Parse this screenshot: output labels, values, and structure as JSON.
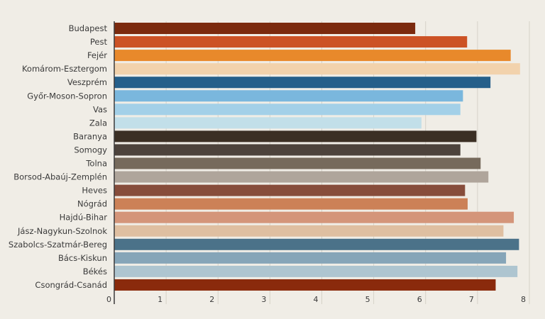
{
  "chart_data": {
    "type": "bar",
    "orientation": "horizontal",
    "title": "",
    "xlabel": "",
    "ylabel": "",
    "xlim": [
      0,
      8
    ],
    "x_ticks": [
      "0",
      "1",
      "2",
      "3",
      "4",
      "5",
      "6",
      "7",
      "8"
    ],
    "grid": true,
    "categories": [
      "Budapest",
      "Pest",
      "Fejér",
      "Komárom-Esztergom",
      "Veszprém",
      "Győr-Moson-Sopron",
      "Vas",
      "Zala",
      "Baranya",
      "Somogy",
      "Tolna",
      "Borsod-Abaúj-Zemplén",
      "Heves",
      "Nógrád",
      "Hajdú-Bihar",
      "Jász-Nagykun-Szolnok",
      "Szabolcs-Szatmár-Bereg",
      "Bács-Kiskun",
      "Békés",
      "Csongrád-Csanád"
    ],
    "values": [
      5.8,
      6.8,
      7.64,
      7.82,
      7.25,
      6.72,
      6.67,
      5.92,
      6.98,
      6.67,
      7.06,
      7.21,
      6.76,
      6.81,
      7.7,
      7.5,
      7.8,
      7.55,
      7.77,
      7.35
    ],
    "colors": [
      "#7b2a0e",
      "#cc5225",
      "#e8892b",
      "#f2d2ac",
      "#255f8a",
      "#7ab7dd",
      "#a3d0e8",
      "#c2dfe9",
      "#3b2f24",
      "#4d433c",
      "#766a5c",
      "#afa59b",
      "#874d3b",
      "#cc8157",
      "#d4957a",
      "#dfbfa1",
      "#4b7289",
      "#86a5b8",
      "#aec5d0",
      "#8a2a0c"
    ]
  }
}
